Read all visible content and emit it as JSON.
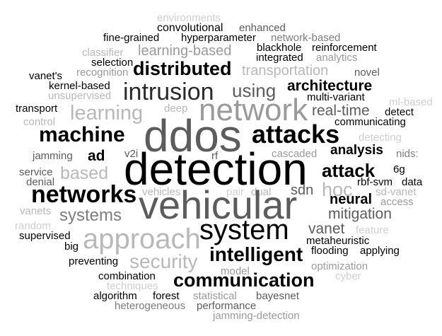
{
  "words": {
    "environments": "environments",
    "convolutional": "convolutional",
    "enhanced": "enhanced",
    "fine_grained": "fine-grained",
    "hyperparameter": "hyperparameter",
    "network_based": "network-based",
    "blackhole": "blackhole",
    "reinforcement": "reinforcement",
    "classifier": "classifier",
    "learning_based": "learning-based",
    "integrated": "integrated",
    "analytics": "analytics",
    "selection": "selection",
    "distributed": "distributed",
    "vanet_s": "vanet's",
    "recognition": "recognition",
    "transportation": "transportation",
    "novel": "novel",
    "kernel_based": "kernel-based",
    "intrusion": "intrusion",
    "using": "using",
    "architecture": "architecture",
    "unsupervised": "unsupervised",
    "multi_variant": "multi-variant",
    "ml_based": "ml-based",
    "transport": "transport",
    "deep": "deep",
    "network": "network",
    "real_time": "real-time",
    "detect": "detect",
    "control": "control",
    "learning": "learning",
    "communicating": "communicating",
    "machine": "machine",
    "ddos": "ddos",
    "attacks": "attacks",
    "detecting": "detecting",
    "jamming": "jamming",
    "ad": "ad",
    "v2i": "v2i",
    "rf": "rf",
    "cascaded": "cascaded",
    "analysis": "analysis",
    "nids": "nids:",
    "detection": "detection",
    "service": "service",
    "based": "based",
    "attack": "attack",
    "sixg": "6g",
    "denial": "denial",
    "rbf_svm": "rbf-svm",
    "data": "data",
    "networks": "networks",
    "vehicles": "vehicles",
    "pair": "pair",
    "dual": "dual",
    "sdn": "sdn",
    "hoc": "hoc",
    "sd_vanet": "sd-vanet",
    "vehicular": "vehicular",
    "neural": "neural",
    "access": "access",
    "vanets": "vanets",
    "systems": "systems",
    "mitigation": "mitigation",
    "random": "random",
    "system": "system",
    "vanet": "vanet",
    "feature": "feature",
    "supervised": "supervised",
    "approach": "approach",
    "metaheuristic": "metaheuristic",
    "big": "big",
    "flooding": "flooding",
    "applying": "applying",
    "intelligent": "intelligent",
    "security": "security",
    "preventing": "preventing",
    "optimization": "optimization",
    "model": "model",
    "combination": "combination",
    "communication": "communication",
    "cyber": "cyber",
    "techniques": "techniques",
    "algorithm": "algorithm",
    "forest": "forest",
    "statistical": "statistical",
    "bayesnet": "bayesnet",
    "heterogeneous": "heterogeneous",
    "performance": "performance",
    "jamming_detection": "jamming-detection"
  }
}
